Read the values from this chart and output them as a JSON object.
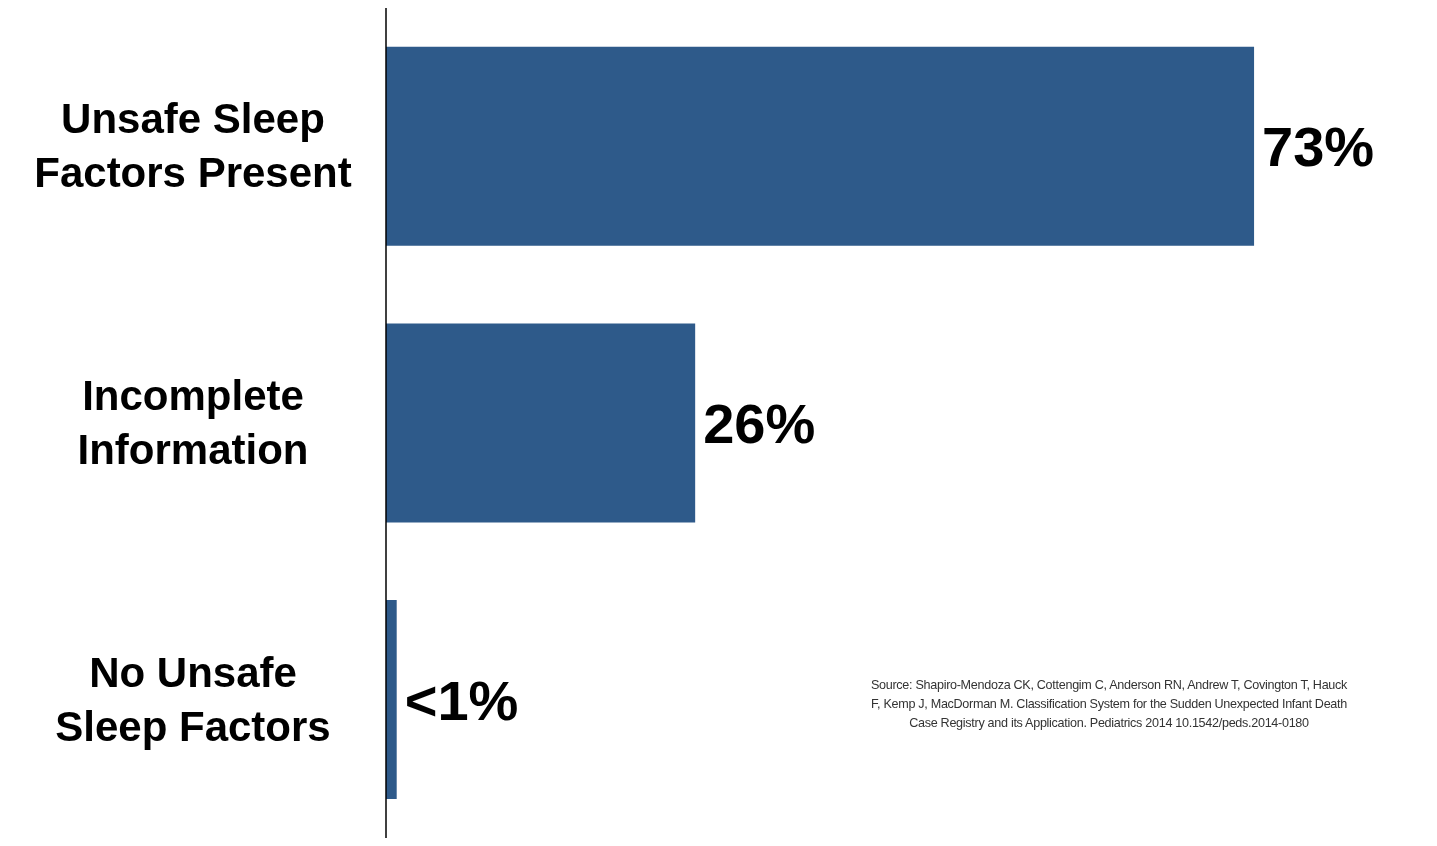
{
  "chart_data": {
    "type": "bar",
    "orientation": "horizontal",
    "categories": [
      "Unsafe Sleep Factors Present",
      "Incomplete Information",
      "No Unsafe Sleep Factors"
    ],
    "values": [
      73,
      26,
      0.9
    ],
    "color": "#2e5a8a",
    "value_labels": [
      "73%",
      "26%",
      "<1%"
    ],
    "grid": false,
    "tick_labels": "y",
    "annotations": [
      "Source: Shapiro-Mendoza CK, Cottengim C, Anderson RN, Andrew T, Covington T, Hauck F, Kemp J, MacDorman M. Classification System for the Sudden Unexpected Infant Death Case Registry and its Application. Pediatrics 2014 10.1542/peds.2014-0180"
    ]
  }
}
